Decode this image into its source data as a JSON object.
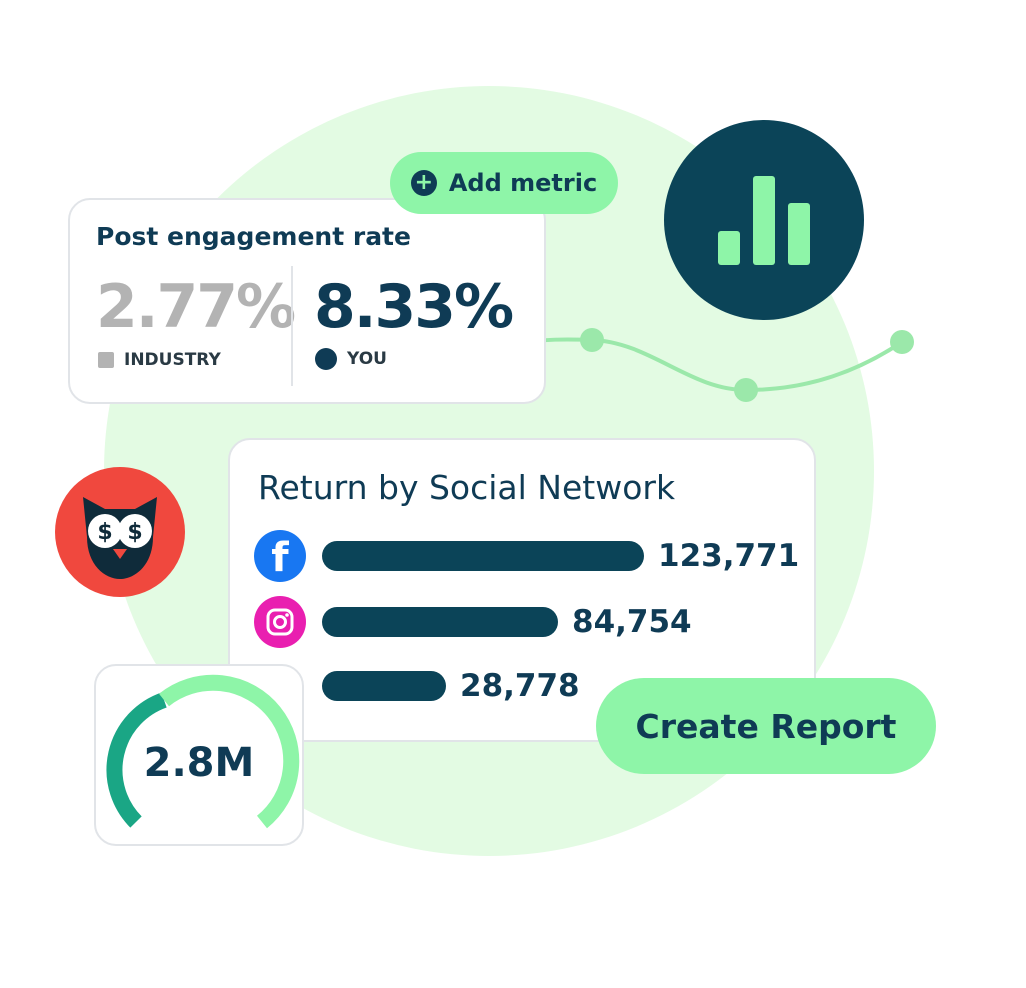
{
  "engagement": {
    "title": "Post engagement rate",
    "industry_value": "2.77%",
    "industry_label": "INDUSTRY",
    "you_value": "8.33%",
    "you_label": "YOU"
  },
  "add_metric": {
    "label": "Add metric"
  },
  "return_card": {
    "title": "Return by Social Network",
    "rows": [
      {
        "network": "facebook",
        "icon": "facebook-icon",
        "value": "123,771",
        "amount": 123771
      },
      {
        "network": "instagram",
        "icon": "instagram-icon",
        "value": "84,754",
        "amount": 84754
      },
      {
        "network": "other",
        "icon": "",
        "value": "28,778",
        "amount": 28778
      }
    ]
  },
  "gauge": {
    "value": "2.8M"
  },
  "create_report": {
    "label": "Create Report"
  },
  "colors": {
    "navy": "#0f3b55",
    "mint": "#8ef5a8",
    "soft_green": "#e3fbe3",
    "owl_red": "#f0483e",
    "gauge_dark": "#1aa685"
  }
}
